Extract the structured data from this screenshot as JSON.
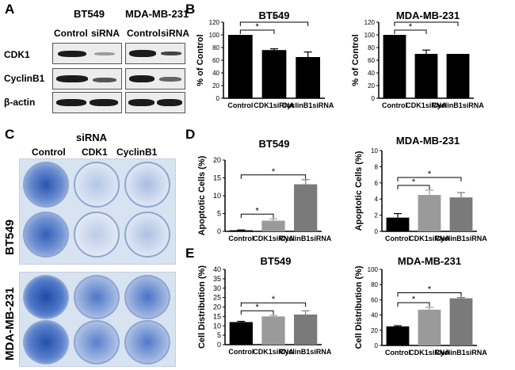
{
  "panels": {
    "A": "A",
    "B": "B",
    "C": "C",
    "D": "D",
    "E": "E"
  },
  "western_blot": {
    "cell_lines": [
      "BT549",
      "MDA-MB-231"
    ],
    "lane_labels": [
      "Control",
      "siRNA"
    ],
    "proteins": [
      "CDK1",
      "CyclinB1",
      "β-actin"
    ]
  },
  "colony": {
    "treatment_header": "siRNA",
    "columns": [
      "Control",
      "CDK1",
      "CyclinB1"
    ],
    "rows": [
      "BT549",
      "MDA-MB-231"
    ]
  },
  "colors": {
    "control": "#000000",
    "cdk1_bars_B": "#000000",
    "cdk1": "#9a9a9a",
    "cyclinb1": "#7a7a7a",
    "plate": "#d8e3f1",
    "colony_stain": "#2a55b0"
  },
  "chart_data": [
    {
      "id": "B-BT549",
      "type": "bar",
      "title": "BT549",
      "xlabel": "",
      "ylabel": "% of Control",
      "categories": [
        "Control",
        "CDK1siRNA",
        "CyclinB1siRNA"
      ],
      "values": [
        100,
        76,
        65
      ],
      "errors": [
        0,
        2,
        8
      ],
      "ylim": [
        0,
        120
      ],
      "yticks": [
        0,
        20,
        40,
        60,
        80,
        100,
        120
      ],
      "significance": [
        "*",
        "*"
      ]
    },
    {
      "id": "B-MDA",
      "type": "bar",
      "title": "MDA-MB-231",
      "xlabel": "",
      "ylabel": "% of Control",
      "categories": [
        "Control",
        "CDK1siRNA",
        "CyclinB1siRNA"
      ],
      "values": [
        100,
        70,
        70
      ],
      "errors": [
        0,
        6,
        0
      ],
      "ylim": [
        0,
        120
      ],
      "yticks": [
        0,
        20,
        40,
        60,
        80,
        100,
        120
      ],
      "significance": [
        "*",
        "*"
      ]
    },
    {
      "id": "D-BT549",
      "type": "bar",
      "title": "BT549",
      "xlabel": "",
      "ylabel": "Apoptotic Cells (%)",
      "categories": [
        "Control",
        "CDK1siRNA",
        "CyclinB1siRNA"
      ],
      "values": [
        0.3,
        3.0,
        13.2
      ],
      "errors": [
        0.1,
        0.5,
        1.3
      ],
      "ylim": [
        0,
        20
      ],
      "yticks": [
        0,
        5,
        10,
        15,
        20
      ],
      "significance": [
        "*",
        "*"
      ]
    },
    {
      "id": "D-MDA",
      "type": "bar",
      "title": "MDA-MB-231",
      "xlabel": "",
      "ylabel": "Apoptotic Cells (%)",
      "categories": [
        "Control",
        "CDK1siRNA",
        "CyclinB1siRNA"
      ],
      "values": [
        1.7,
        4.5,
        4.2
      ],
      "errors": [
        0.5,
        0.6,
        0.6
      ],
      "ylim": [
        0,
        10
      ],
      "yticks": [
        0,
        2,
        4,
        6,
        8,
        10
      ],
      "significance": [
        "*",
        "*"
      ]
    },
    {
      "id": "E-BT549",
      "type": "bar",
      "title": "BT549",
      "xlabel": "",
      "ylabel": "Cell Distribution (%)",
      "categories": [
        "Control",
        "CDK1siRNA",
        "CyclinB1siRNA"
      ],
      "values": [
        12,
        15,
        16
      ],
      "errors": [
        0.4,
        0.5,
        2
      ],
      "ylim": [
        0,
        40
      ],
      "yticks": [
        0,
        5,
        10,
        15,
        20,
        25,
        30,
        35,
        40
      ],
      "significance": [
        "*",
        "*"
      ]
    },
    {
      "id": "E-MDA",
      "type": "bar",
      "title": "MDA-MB-231",
      "xlabel": "",
      "ylabel": "Cell Distribution (%)",
      "categories": [
        "Control",
        "CDK1siRNA",
        "CyclinB1siRNA"
      ],
      "values": [
        25,
        47,
        62
      ],
      "errors": [
        1,
        3,
        1
      ],
      "ylim": [
        0,
        100
      ],
      "yticks": [
        0,
        20,
        40,
        60,
        80,
        100
      ],
      "significance": [
        "*",
        "*"
      ]
    }
  ]
}
